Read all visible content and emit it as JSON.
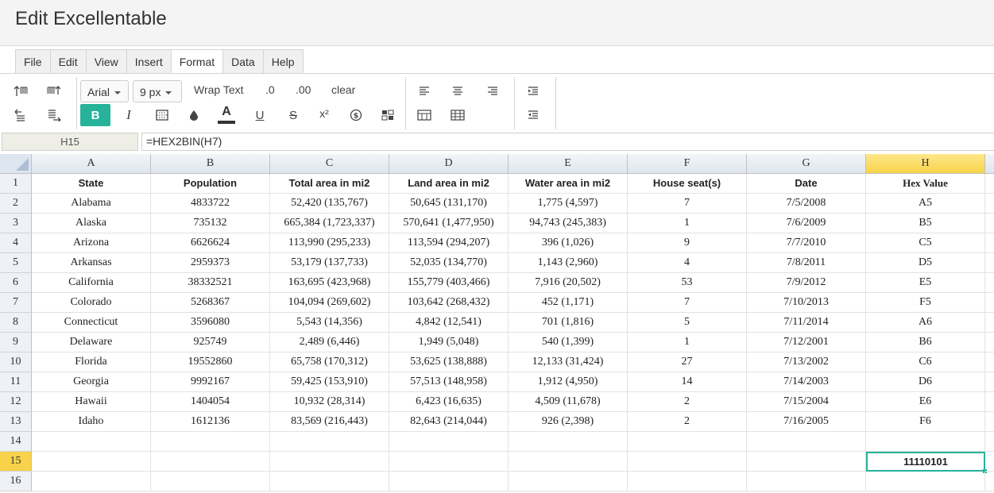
{
  "app": {
    "title": "Edit Excellentable"
  },
  "menu": [
    "File",
    "Edit",
    "View",
    "Insert",
    "Format",
    "Data",
    "Help"
  ],
  "menu_active": "Format",
  "toolbar": {
    "font_family": "Arial",
    "font_size": "9 px",
    "wrap_text": "Wrap Text",
    "decimal_decrease": ".0",
    "decimal_increase": ".00",
    "clear": "clear",
    "bold": "B",
    "italic": "I",
    "font_color": "A",
    "underline": "U",
    "strike": "S",
    "superscript": "x²",
    "accent_color": "#26b39a"
  },
  "formula_bar": {
    "cell_ref": "H15",
    "formula": "=HEX2BIN(H7)"
  },
  "columns": [
    "A",
    "B",
    "C",
    "D",
    "E",
    "F",
    "G",
    "H"
  ],
  "selected_column": "H",
  "rows": [
    [
      "State",
      "Population",
      "Total area in mi2",
      "Land area in mi2",
      "Water area in mi2",
      "House seat(s)",
      "Date",
      "Hex Value"
    ],
    [
      "Alabama",
      "4833722",
      "52,420 (135,767)",
      "50,645 (131,170)",
      "1,775 (4,597)",
      "7",
      "7/5/2008",
      "A5"
    ],
    [
      "Alaska",
      "735132",
      "665,384 (1,723,337)",
      "570,641 (1,477,950)",
      "94,743 (245,383)",
      "1",
      "7/6/2009",
      "B5"
    ],
    [
      "Arizona",
      "6626624",
      "113,990 (295,233)",
      "113,594 (294,207)",
      "396 (1,026)",
      "9",
      "7/7/2010",
      "C5"
    ],
    [
      "Arkansas",
      "2959373",
      "53,179 (137,733)",
      "52,035 (134,770)",
      "1,143 (2,960)",
      "4",
      "7/8/2011",
      "D5"
    ],
    [
      "California",
      "38332521",
      "163,695 (423,968)",
      "155,779 (403,466)",
      "7,916 (20,502)",
      "53",
      "7/9/2012",
      "E5"
    ],
    [
      "Colorado",
      "5268367",
      "104,094 (269,602)",
      "103,642 (268,432)",
      "452 (1,171)",
      "7",
      "7/10/2013",
      "F5"
    ],
    [
      "Connecticut",
      "3596080",
      "5,543 (14,356)",
      "4,842 (12,541)",
      "701 (1,816)",
      "5",
      "7/11/2014",
      "A6"
    ],
    [
      "Delaware",
      "925749",
      "2,489 (6,446)",
      "1,949 (5,048)",
      "540 (1,399)",
      "1",
      "7/12/2001",
      "B6"
    ],
    [
      "Florida",
      "19552860",
      "65,758 (170,312)",
      "53,625 (138,888)",
      "12,133 (31,424)",
      "27",
      "7/13/2002",
      "C6"
    ],
    [
      "Georgia",
      "9992167",
      "59,425 (153,910)",
      "57,513 (148,958)",
      "1,912 (4,950)",
      "14",
      "7/14/2003",
      "D6"
    ],
    [
      "Hawaii",
      "1404054",
      "10,932 (28,314)",
      "6,423 (16,635)",
      "4,509 (11,678)",
      "2",
      "7/15/2004",
      "E6"
    ],
    [
      "Idaho",
      "1612136",
      "83,569 (216,443)",
      "82,643 (214,044)",
      "926 (2,398)",
      "2",
      "7/16/2005",
      "F6"
    ],
    [
      "",
      "",
      "",
      "",
      "",
      "",
      "",
      ""
    ],
    [
      "",
      "",
      "",
      "",
      "",
      "",
      "",
      "11110101"
    ],
    [
      "",
      "",
      "",
      "",
      "",
      "",
      "",
      ""
    ]
  ],
  "row_numbers": [
    "1",
    "2",
    "3",
    "4",
    "5",
    "6",
    "7",
    "8",
    "9",
    "10",
    "11",
    "12",
    "13",
    "14",
    "15",
    "16"
  ],
  "active_cell": {
    "row": 15,
    "col": "H"
  }
}
